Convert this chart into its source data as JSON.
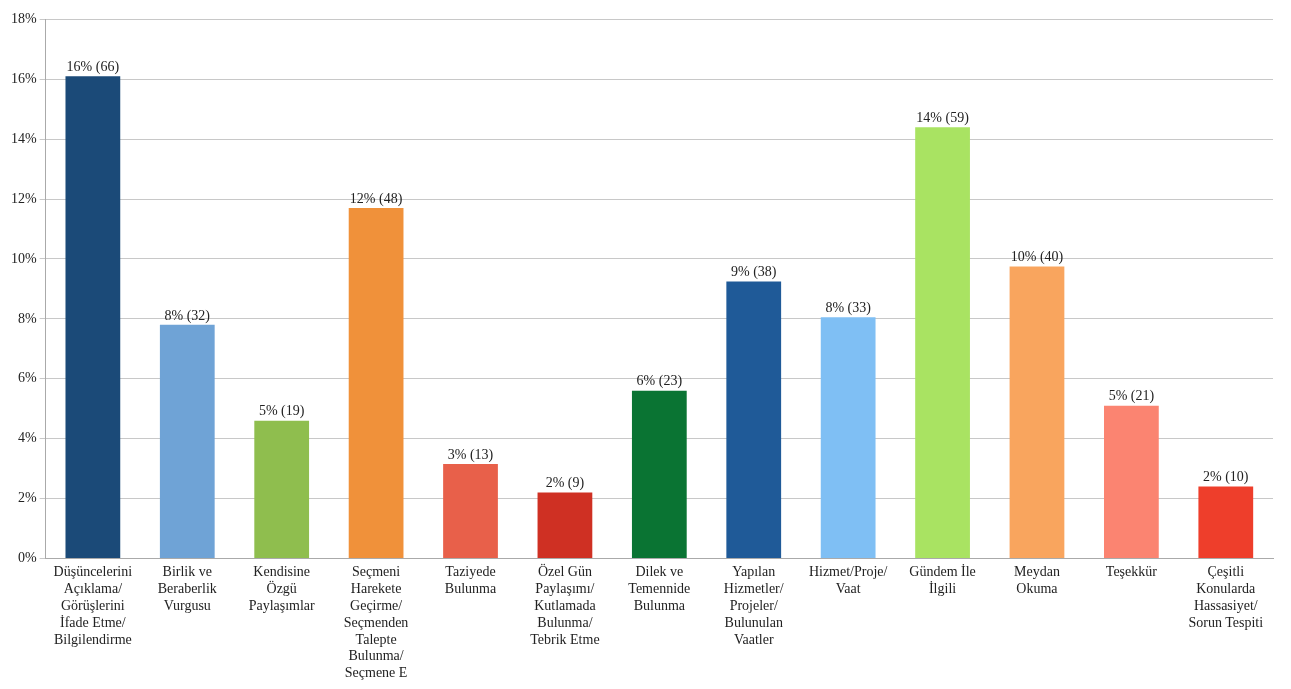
{
  "chart_data": {
    "type": "bar",
    "categories": [
      "Düşüncelerini Açıklama/Görüşlerini İfade Etme/Bilgilendirme",
      "Birlik ve Beraberlik Vurgusu",
      "Kendisine Özgü Paylaşımlar",
      "Seçmeni Harekete Geçirme/Seçmenden Talepte Bulunma/Seçmene E",
      "Taziyede Bulunma",
      "Özel Gün Paylaşımı/Kutlamada Bulunma/Tebrik Etme",
      "Dilek ve Temennide Bulunma",
      "Yapılan Hizmetler/Projeler/Bulunulan Vaatler",
      "Hizmet/Proje/Vaat",
      "Gündem İle İlgili",
      "Meydan Okuma",
      "Teşekkür",
      "Çeşitli Konularda Hassasiyet/Sorun Tespiti"
    ],
    "values": [
      16.1,
      7.8,
      4.6,
      11.7,
      3.15,
      2.2,
      5.6,
      9.25,
      8.05,
      14.4,
      9.75,
      5.1,
      2.4
    ],
    "value_labels": [
      "16% (66)",
      "8% (32)",
      "5% (19)",
      "12% (48)",
      "3% (13)",
      "2% (9)",
      "6% (23)",
      "9% (38)",
      "8% (33)",
      "14% (59)",
      "10% (40)",
      "5% (21)",
      "2% (10)"
    ],
    "colors": [
      "#1b4a78",
      "#6fa3d6",
      "#8fbe4e",
      "#f0913a",
      "#e8604a",
      "#cf3023",
      "#0a7433",
      "#1f5a98",
      "#7fbff4",
      "#a9e362",
      "#f9a55e",
      "#fb8471",
      "#ee3e2b"
    ],
    "ylim": [
      0,
      18
    ],
    "yticks": [
      {
        "value": 0,
        "label": "0%"
      },
      {
        "value": 2,
        "label": "2%"
      },
      {
        "value": 4,
        "label": "4%"
      },
      {
        "value": 6,
        "label": "6%"
      },
      {
        "value": 8,
        "label": "8%"
      },
      {
        "value": 10,
        "label": "10%"
      },
      {
        "value": 12,
        "label": "12%"
      },
      {
        "value": 14,
        "label": "14%"
      },
      {
        "value": 16,
        "label": "16%"
      },
      {
        "value": 18,
        "label": "18%"
      }
    ],
    "grid": "y",
    "legend": false
  }
}
